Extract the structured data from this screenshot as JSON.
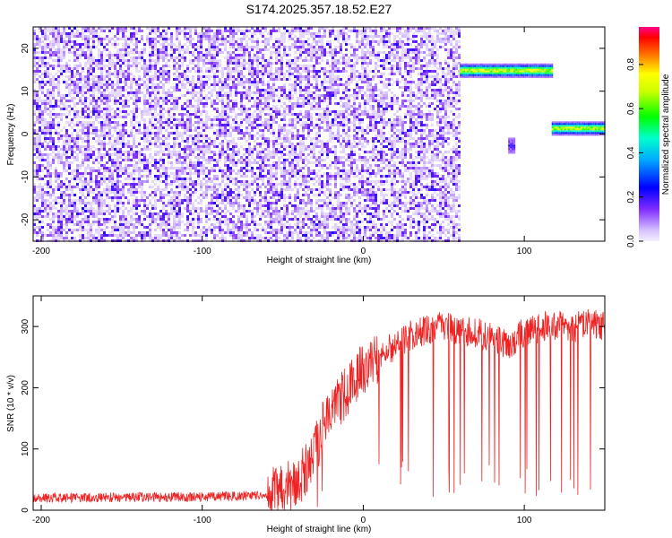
{
  "title": "S174.2025.357.18.52.E27",
  "chart_data": [
    {
      "type": "heatmap",
      "xlabel": "Height of straight line (km)",
      "ylabel": "Frequency (Hz)",
      "xlim": [
        -205,
        150
      ],
      "ylim": [
        -25,
        25
      ],
      "xticks": [
        -200,
        -100,
        0,
        100
      ],
      "yticks": [
        -20,
        -10,
        0,
        10,
        20
      ],
      "colorbar": {
        "label": "Normalized spectral amplitude",
        "ticks": [
          "0.0",
          "0.2",
          "0.4",
          "0.6",
          "0.8"
        ],
        "tick_values": [
          0.0,
          0.2,
          0.4,
          0.6,
          0.8
        ],
        "range": [
          0,
          0.97
        ],
        "colormap": "rainbow-white"
      },
      "noise_region": {
        "x": [
          -205,
          60
        ],
        "y": [
          -25,
          25
        ],
        "amplitude": [
          0.02,
          0.2
        ]
      },
      "features": [
        {
          "x0": 60,
          "x1": 117,
          "freq": 15,
          "peak_amplitude": 0.9
        },
        {
          "x0": 117,
          "x1": 150,
          "freq": 1.5,
          "peak_amplitude": 0.85
        },
        {
          "x0": 90,
          "x1": 94,
          "freq": -2.5,
          "peak_amplitude": 0.2
        }
      ]
    },
    {
      "type": "line",
      "xlabel": "Height of straight line (km)",
      "ylabel": "SNR (10 * v/v)",
      "xlim": [
        -205,
        150
      ],
      "ylim": [
        0,
        350
      ],
      "xticks": [
        -200,
        -100,
        0,
        100
      ],
      "yticks": [
        0,
        100,
        200,
        300
      ],
      "series": [
        {
          "color": "#ee2222",
          "x": [
            -205,
            -150,
            -100,
            -60,
            -50,
            -40,
            -35,
            -30,
            -25,
            -20,
            -15,
            -10,
            -5,
            0,
            5,
            10,
            15,
            20,
            25,
            30,
            40,
            50,
            60,
            70,
            80,
            90,
            100,
            110,
            120,
            130,
            140,
            150
          ],
          "y": [
            20,
            21,
            22,
            24,
            30,
            48,
            70,
            100,
            135,
            160,
            180,
            198,
            215,
            228,
            240,
            252,
            262,
            270,
            278,
            286,
            296,
            300,
            292,
            290,
            282,
            268,
            292,
            298,
            302,
            298,
            305,
            300
          ]
        }
      ]
    }
  ]
}
